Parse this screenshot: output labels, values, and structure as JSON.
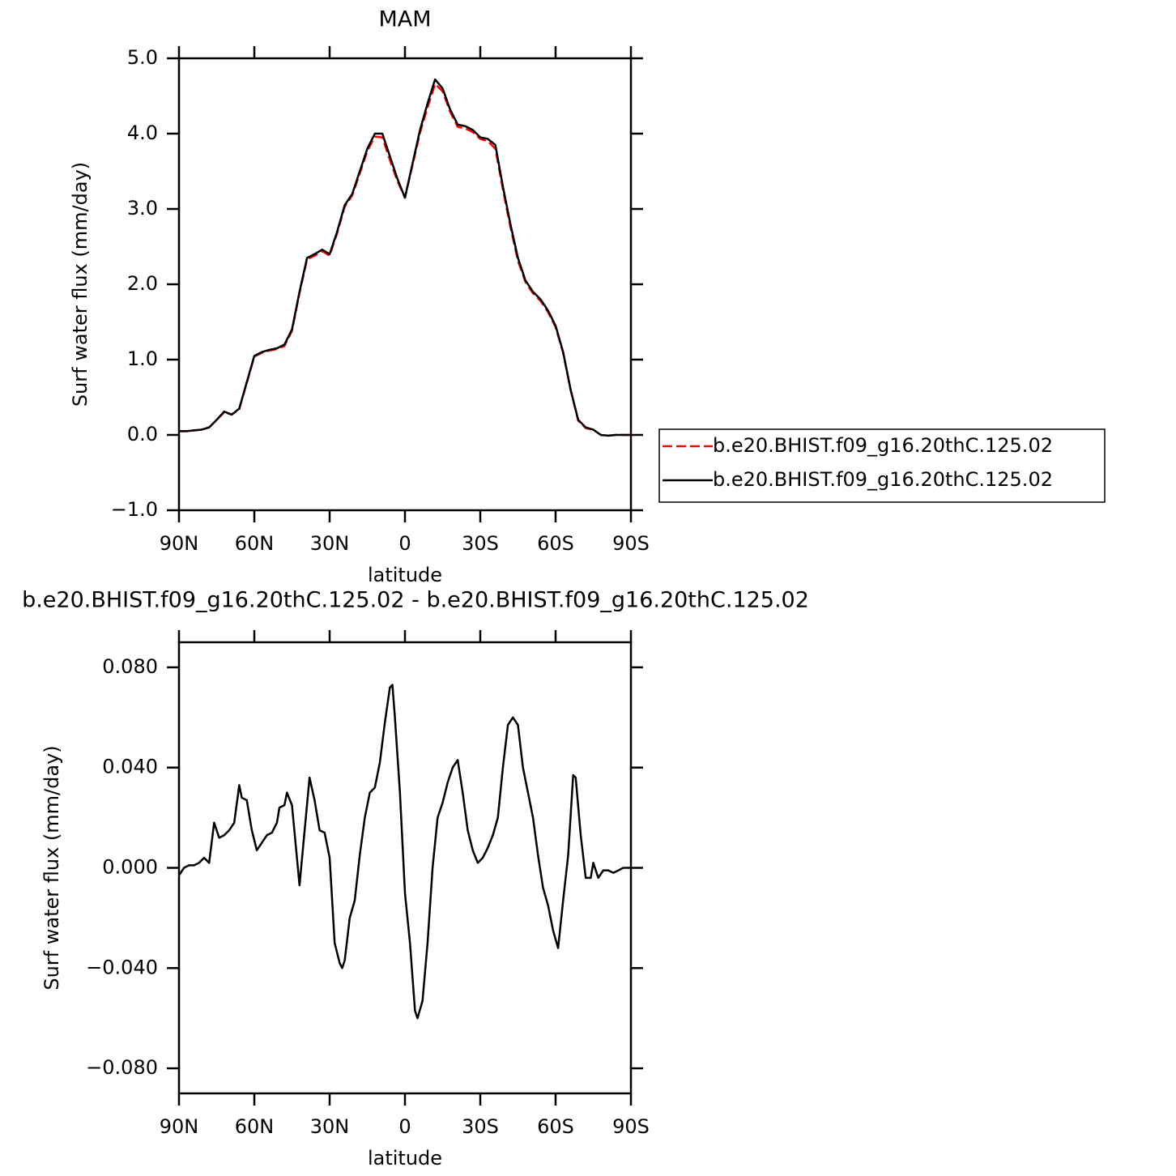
{
  "chart_data": [
    {
      "type": "line",
      "title": "MAM",
      "xlabel": "latitude",
      "ylabel": "Surf water flux (mm/day)",
      "x": [
        90,
        87,
        84,
        81,
        78,
        75,
        72,
        69,
        66,
        63,
        60,
        57,
        54,
        51,
        48,
        45,
        42,
        39,
        36,
        33,
        30,
        27,
        24,
        21,
        18,
        15,
        12,
        9,
        6,
        3,
        0,
        -3,
        -6,
        -9,
        -12,
        -15,
        -18,
        -21,
        -24,
        -27,
        -30,
        -33,
        -36,
        -39,
        -42,
        -45,
        -48,
        -51,
        -54,
        -57,
        -60,
        -63,
        -66,
        -69,
        -72,
        -75,
        -78,
        -81,
        -84,
        -87,
        -90
      ],
      "series": [
        {
          "name": "b.e20.BHIST.f09_g16.20thC.125.02",
          "color": "#ff0000",
          "dash": true,
          "values": [
            0.05,
            0.05,
            0.06,
            0.07,
            0.1,
            0.2,
            0.3,
            0.27,
            0.34,
            0.69,
            1.04,
            1.09,
            1.12,
            1.14,
            1.18,
            1.38,
            1.88,
            2.33,
            2.38,
            2.44,
            2.38,
            2.68,
            3.03,
            3.18,
            3.47,
            3.77,
            3.96,
            3.95,
            3.65,
            3.37,
            3.15,
            3.58,
            4.01,
            4.35,
            4.66,
            4.56,
            4.29,
            4.09,
            4.07,
            4.02,
            3.93,
            3.9,
            3.8,
            3.26,
            2.76,
            2.31,
            2.03,
            1.88,
            1.78,
            1.63,
            1.43,
            1.09,
            0.59,
            0.19,
            0.09,
            0.07,
            0.0,
            -0.01,
            0.0,
            0.0,
            0.0
          ]
        },
        {
          "name": "b.e20.BHIST.f09_g16.20thC.125.02",
          "color": "#000000",
          "dash": false,
          "values": [
            0.05,
            0.05,
            0.06,
            0.07,
            0.1,
            0.2,
            0.31,
            0.27,
            0.35,
            0.7,
            1.05,
            1.1,
            1.13,
            1.15,
            1.2,
            1.4,
            1.9,
            2.35,
            2.4,
            2.46,
            2.4,
            2.7,
            3.05,
            3.2,
            3.5,
            3.8,
            4.0,
            4.0,
            3.7,
            3.4,
            3.15,
            3.6,
            4.05,
            4.4,
            4.72,
            4.6,
            4.32,
            4.12,
            4.1,
            4.05,
            3.95,
            3.93,
            3.85,
            3.3,
            2.8,
            2.35,
            2.05,
            1.9,
            1.8,
            1.65,
            1.45,
            1.1,
            0.6,
            0.2,
            0.1,
            0.07,
            0.0,
            -0.01,
            0.0,
            0.0,
            0.0
          ]
        }
      ],
      "xlim": [
        90,
        -90
      ],
      "xticks": [
        {
          "value": 90,
          "label": "90N"
        },
        {
          "value": 60,
          "label": "60N"
        },
        {
          "value": 30,
          "label": "30N"
        },
        0,
        {
          "value": -30,
          "label": "30S"
        },
        {
          "value": -60,
          "label": "60S"
        },
        {
          "value": -90,
          "label": "90S"
        }
      ],
      "ylim": [
        -1,
        5
      ],
      "yticks": [
        {
          "value": -1,
          "label": "−1.0"
        },
        {
          "value": 0,
          "label": "0.0"
        },
        {
          "value": 1,
          "label": "1.0"
        },
        {
          "value": 2,
          "label": "2.0"
        },
        {
          "value": 3,
          "label": "3.0"
        },
        {
          "value": 4,
          "label": "4.0"
        },
        {
          "value": 5,
          "label": "5.0"
        }
      ],
      "legend": "right"
    },
    {
      "type": "line",
      "title": "b.e20.BHIST.f09_g16.20thC.125.02 - b.e20.BHIST.f09_g16.20thC.125.02",
      "xlabel": "latitude",
      "ylabel": "Surf water flux (mm/day)",
      "x": [
        90,
        88,
        86,
        84,
        82,
        80,
        78,
        76,
        74,
        72,
        70,
        68,
        66,
        65,
        63,
        61,
        59,
        57,
        55,
        53,
        51,
        50,
        48,
        47,
        45,
        42,
        38,
        36,
        34,
        32,
        30,
        28,
        26,
        25,
        24,
        22,
        20,
        18,
        16,
        14,
        12,
        10,
        8,
        6,
        5,
        4,
        2,
        0,
        -2,
        -4,
        -5,
        -7,
        -9,
        -11,
        -13,
        -15,
        -17,
        -19,
        -21,
        -23,
        -25,
        -27,
        -29,
        -31,
        -33,
        -35,
        -37,
        -39,
        -41,
        -43,
        -45,
        -47,
        -49,
        -51,
        -53,
        -55,
        -57,
        -59,
        -61,
        -63,
        -65,
        -67,
        -68,
        -70,
        -72,
        -74,
        -75,
        -77,
        -79,
        -81,
        -83,
        -85,
        -87,
        -90
      ],
      "series": [
        {
          "color": "#000000",
          "dash": false,
          "values": [
            -0.003,
            0.0,
            0.001,
            0.001,
            0.002,
            0.004,
            0.002,
            0.018,
            0.012,
            0.013,
            0.015,
            0.018,
            0.033,
            0.028,
            0.027,
            0.015,
            0.007,
            0.01,
            0.013,
            0.014,
            0.018,
            0.024,
            0.025,
            0.03,
            0.025,
            -0.007,
            0.036,
            0.027,
            0.015,
            0.014,
            0.004,
            -0.03,
            -0.038,
            -0.04,
            -0.037,
            -0.02,
            -0.013,
            0.005,
            0.02,
            0.03,
            0.032,
            0.042,
            0.058,
            0.072,
            0.073,
            0.06,
            0.03,
            -0.01,
            -0.03,
            -0.057,
            -0.06,
            -0.053,
            -0.03,
            0.0,
            0.02,
            0.026,
            0.034,
            0.04,
            0.043,
            0.03,
            0.015,
            0.007,
            0.002,
            0.004,
            0.008,
            0.013,
            0.02,
            0.04,
            0.057,
            0.06,
            0.057,
            0.04,
            0.03,
            0.02,
            0.005,
            -0.008,
            -0.015,
            -0.025,
            -0.032,
            -0.013,
            0.005,
            0.037,
            0.036,
            0.013,
            -0.004,
            -0.004,
            0.002,
            -0.004,
            -0.001,
            -0.001,
            -0.002,
            -0.001,
            0.0,
            0.0
          ]
        }
      ],
      "xlim": [
        90,
        -90
      ],
      "xticks": [
        {
          "value": 90,
          "label": "90N"
        },
        {
          "value": 60,
          "label": "60N"
        },
        {
          "value": 30,
          "label": "30N"
        },
        0,
        {
          "value": -30,
          "label": "30S"
        },
        {
          "value": -60,
          "label": "60S"
        },
        {
          "value": -90,
          "label": "90S"
        }
      ],
      "ylim": [
        -0.09,
        0.09
      ],
      "yticks": [
        {
          "value": -0.08,
          "label": "−0.080"
        },
        {
          "value": -0.04,
          "label": "−0.040"
        },
        {
          "value": 0,
          "label": "0.000"
        },
        {
          "value": 0.04,
          "label": "0.040"
        },
        {
          "value": 0.08,
          "label": "0.080"
        }
      ]
    }
  ]
}
